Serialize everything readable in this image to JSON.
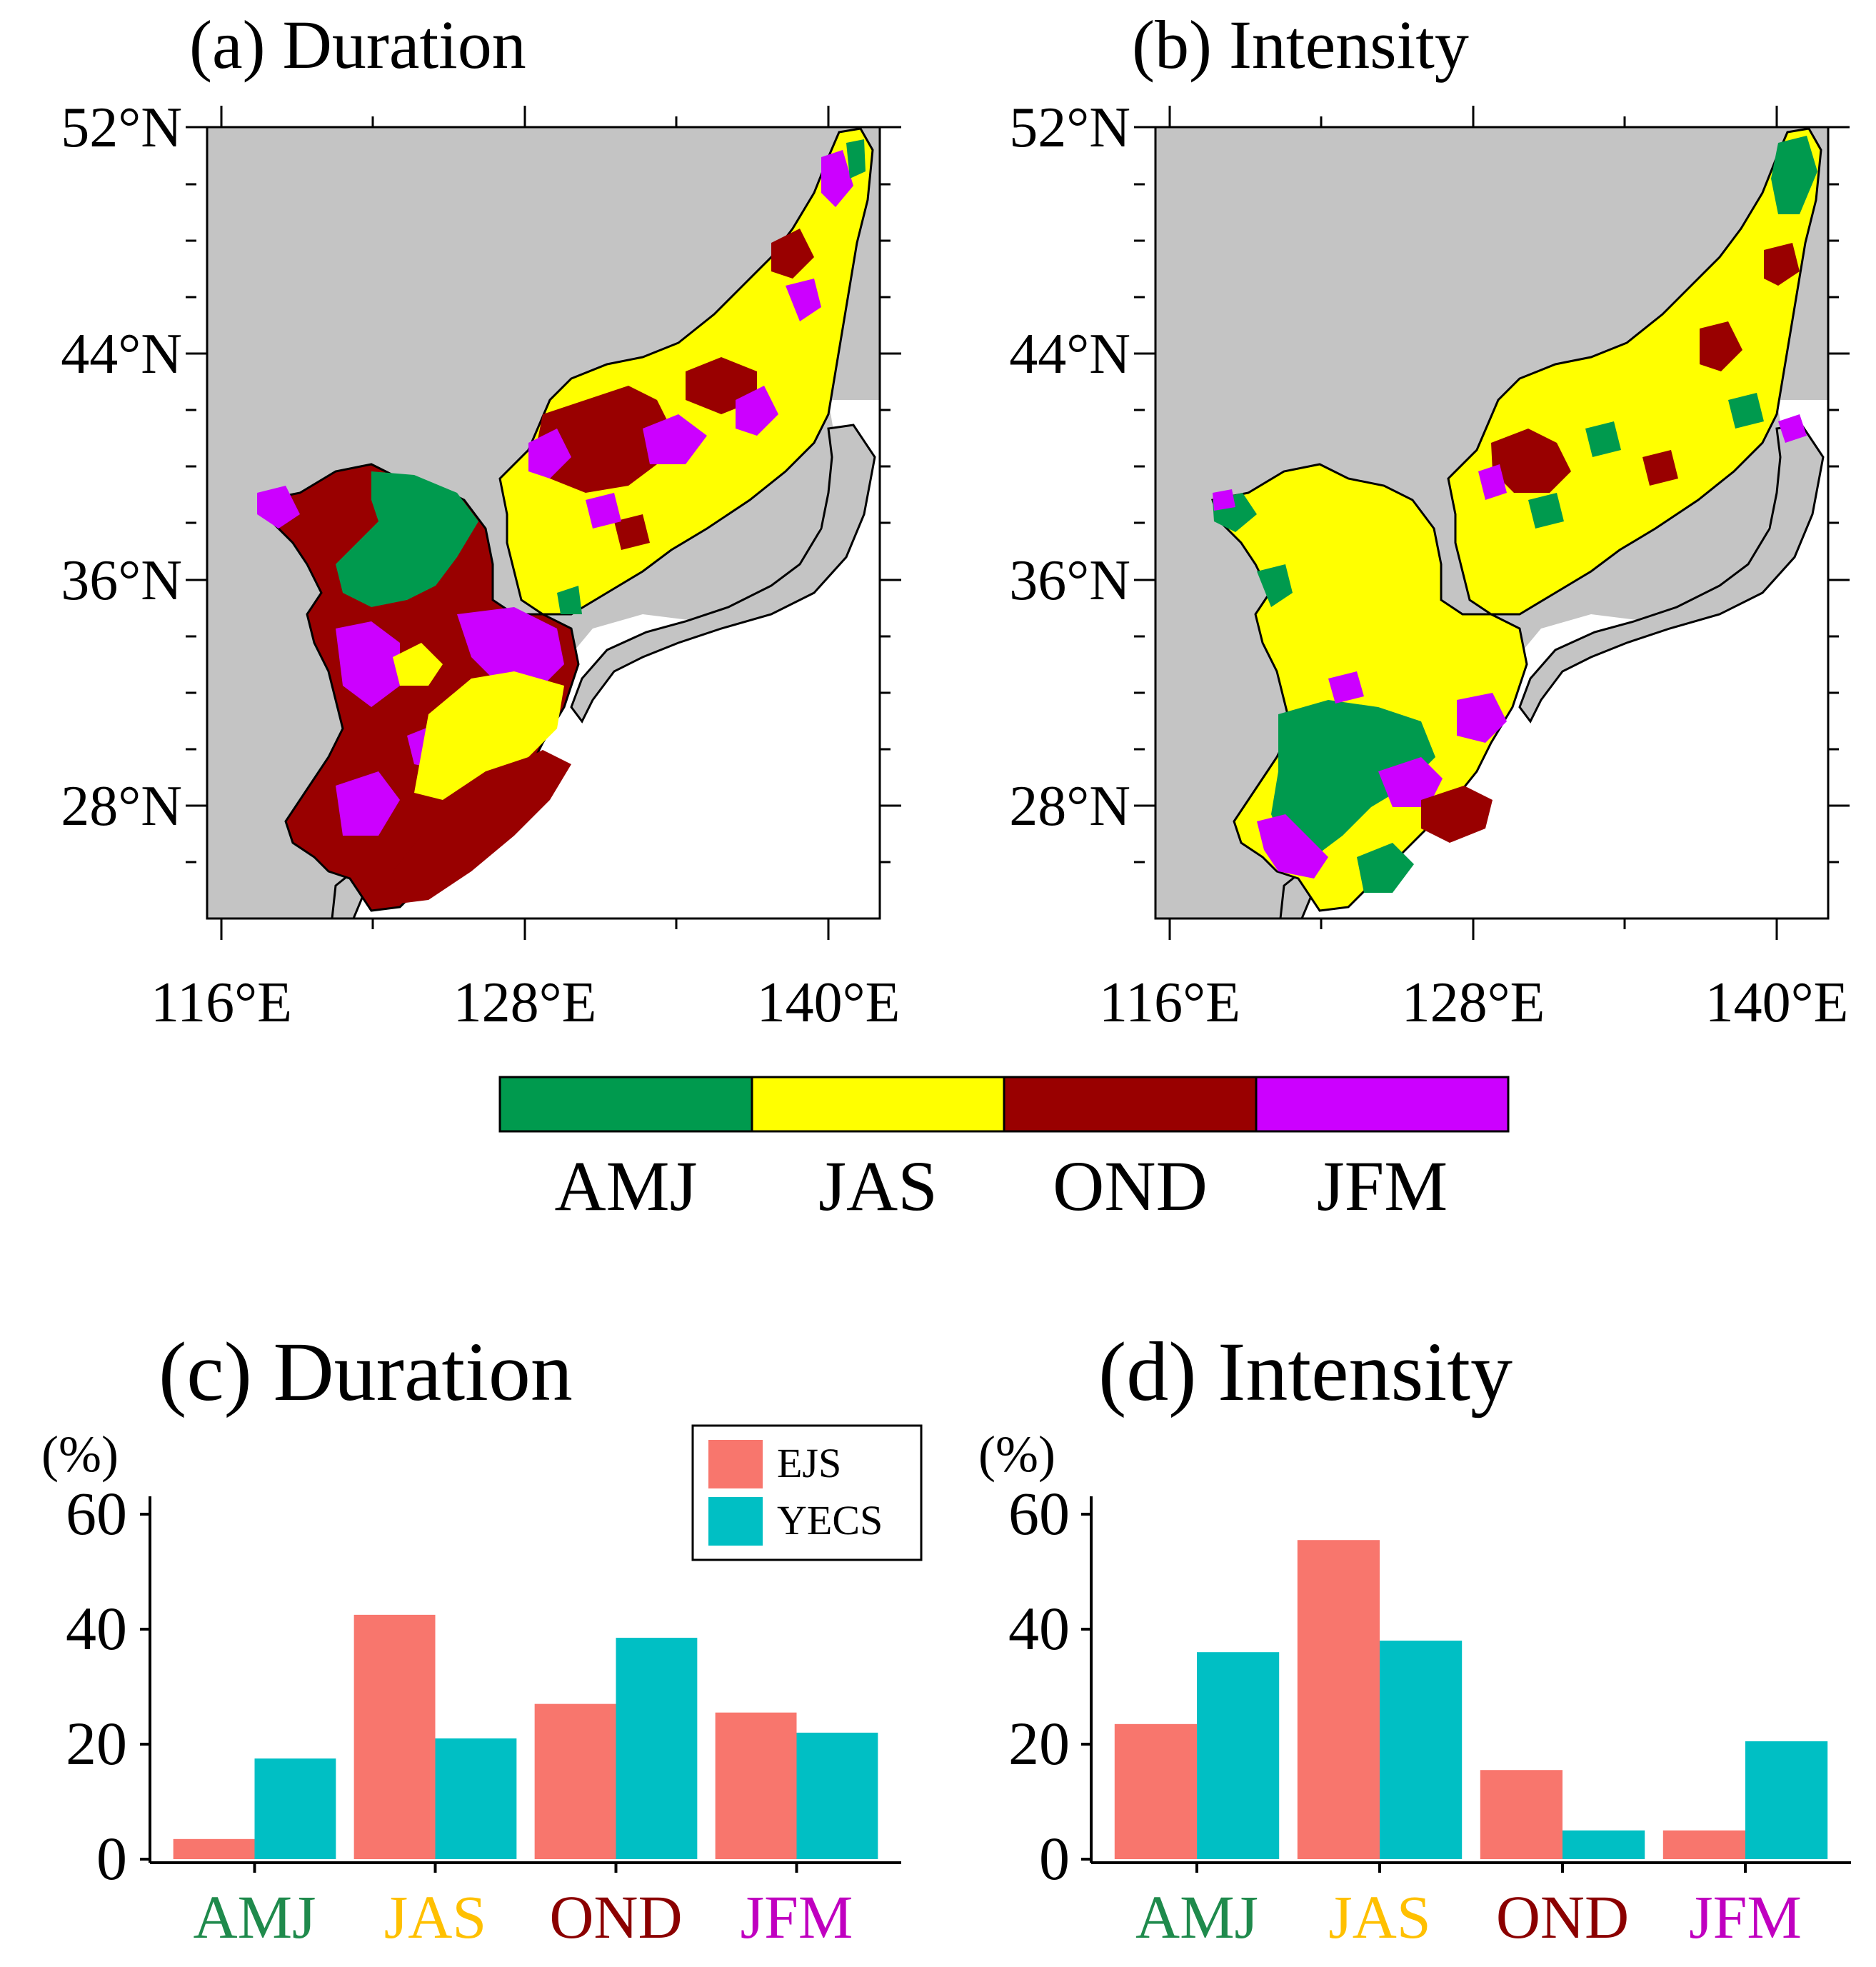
{
  "maps": [
    {
      "id": "a",
      "title": "(a) Duration",
      "lat_labels": [
        "52°N",
        "44°N",
        "36°N",
        "28°N"
      ],
      "lon_labels": [
        "116°E",
        "128°E",
        "140°E"
      ]
    },
    {
      "id": "b",
      "title": "(b) Intensity",
      "lat_labels": [
        "52°N",
        "44°N",
        "36°N",
        "28°N"
      ],
      "lon_labels": [
        "116°E",
        "128°E",
        "140°E"
      ]
    }
  ],
  "colorbar": [
    {
      "label": "AMJ",
      "color": "#009a4e"
    },
    {
      "label": "JAS",
      "color": "#ffff00"
    },
    {
      "label": "OND",
      "color": "#990000"
    },
    {
      "label": "JFM",
      "color": "#cc00ff"
    }
  ],
  "colors": {
    "land": "#c4c4c4",
    "EJS": "#f8766d",
    "YECS": "#00bfc4",
    "AMJ": "#1f8a4c",
    "JAS": "#ffc000",
    "OND": "#8b0000",
    "JFM": "#c000c0"
  },
  "chart_data": [
    {
      "type": "bar",
      "title": "(c) Duration",
      "ylabel": "(%)",
      "categories": [
        "AMJ",
        "JAS",
        "OND",
        "JFM"
      ],
      "series": [
        {
          "name": "EJS",
          "values": [
            3.5,
            42.5,
            27.0,
            25.5
          ]
        },
        {
          "name": "YECS",
          "values": [
            17.5,
            21.0,
            38.5,
            22.0
          ]
        }
      ],
      "ylim": [
        0,
        60
      ],
      "yticks": [
        "0",
        "20",
        "40",
        "60"
      ],
      "legend": "top-right"
    },
    {
      "type": "bar",
      "title": "(d) Intensity",
      "ylabel": "(%)",
      "categories": [
        "AMJ",
        "JAS",
        "OND",
        "JFM"
      ],
      "series": [
        {
          "name": "EJS",
          "values": [
            23.5,
            55.5,
            15.5,
            5.0
          ]
        },
        {
          "name": "YECS",
          "values": [
            36.0,
            38.0,
            5.0,
            20.5
          ]
        }
      ],
      "ylim": [
        0,
        60
      ],
      "yticks": [
        "0",
        "20",
        "40",
        "60"
      ]
    }
  ]
}
